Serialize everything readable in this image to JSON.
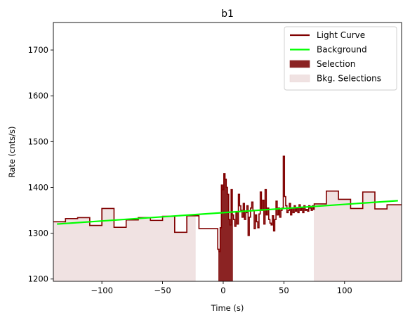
{
  "chart_data": {
    "type": "line",
    "title": "b1",
    "xlabel": "Time (s)",
    "ylabel": "Rate (cnts/s)",
    "xlim": [
      -140,
      147
    ],
    "ylim": [
      1195,
      1760
    ],
    "xticks": [
      -100,
      -50,
      0,
      50,
      100
    ],
    "yticks": [
      1200,
      1300,
      1400,
      1500,
      1600,
      1700
    ],
    "xtick_labels": [
      "−100",
      "−50",
      "0",
      "50",
      "100"
    ],
    "ytick_labels": [
      "1200",
      "1300",
      "1400",
      "1500",
      "1600",
      "1700"
    ],
    "grid": false,
    "legend_position": "top-right",
    "legend": [
      {
        "label": "Light Curve",
        "kind": "line",
        "color": "#800000"
      },
      {
        "label": "Background",
        "kind": "line",
        "color": "#00ff00"
      },
      {
        "label": "Selection",
        "kind": "patch",
        "color": "#8b2323"
      },
      {
        "label": "Bkg. Selections",
        "kind": "patch",
        "color": "#f0e2e2"
      }
    ],
    "series": [
      {
        "name": "Light Curve",
        "color": "#800000",
        "step": "post",
        "x": [
          -140,
          -130,
          -120,
          -110,
          -100,
          -90,
          -80,
          -70,
          -60,
          -50,
          -40,
          -30,
          -20,
          -4.5,
          -3.5,
          -2.5,
          -1.5,
          -0.5,
          0.5,
          1.5,
          2.5,
          3.5,
          4.5,
          5.5,
          6.5,
          7.5,
          8.5,
          9.5,
          10.5,
          11.5,
          12.5,
          13.5,
          14.5,
          15.5,
          16.5,
          17.5,
          18.5,
          19.5,
          20.5,
          21.5,
          22.5,
          23.5,
          24.5,
          25.5,
          26.5,
          27.5,
          28.5,
          29.5,
          30.5,
          31.5,
          32.5,
          33.5,
          34.5,
          35.5,
          36.5,
          37.5,
          38.5,
          39.5,
          40.5,
          41.5,
          42.5,
          43.5,
          44.5,
          45.5,
          46.5,
          47.5,
          48.5,
          49.5,
          50.5,
          51.5,
          52.5,
          53.5,
          54.5,
          55.5,
          56.5,
          57.5,
          58.5,
          59.5,
          60.5,
          61.5,
          62.5,
          63.5,
          64.5,
          65.5,
          66.5,
          67.5,
          68.5,
          69.5,
          70.5,
          71.5,
          72.5,
          73.5,
          74.5,
          75,
          85,
          95,
          105,
          115,
          125,
          135,
          147
        ],
        "y": [
          1325,
          1332,
          1334,
          1317,
          1354,
          1313,
          1329,
          1334,
          1328,
          1337,
          1302,
          1338,
          1310,
          1265,
          1260,
          1312,
          1405,
          1395,
          1430,
          1418,
          1400,
          1385,
          1330,
          1318,
          1395,
          1340,
          1330,
          1315,
          1345,
          1320,
          1385,
          1360,
          1350,
          1335,
          1365,
          1330,
          1345,
          1360,
          1295,
          1335,
          1355,
          1368,
          1350,
          1310,
          1340,
          1325,
          1312,
          1342,
          1390,
          1350,
          1372,
          1320,
          1395,
          1340,
          1355,
          1330,
          1322,
          1318,
          1338,
          1305,
          1330,
          1370,
          1340,
          1355,
          1335,
          1350,
          1355,
          1468,
          1380,
          1360,
          1345,
          1350,
          1365,
          1340,
          1355,
          1345,
          1360,
          1348,
          1355,
          1345,
          1362,
          1350,
          1355,
          1345,
          1360,
          1350,
          1352,
          1348,
          1360,
          1355,
          1350,
          1360,
          1352,
          1364,
          1392,
          1374,
          1354,
          1390,
          1353,
          1362,
          1362
        ]
      },
      {
        "name": "Background",
        "color": "#00ff00",
        "x": [
          -137,
          144
        ],
        "y": [
          1320,
          1371
        ]
      }
    ],
    "selection": {
      "x": [
        -4,
        8
      ],
      "color": "#8b2323"
    },
    "bkg_selections": [
      {
        "x": [
          -140,
          -23
        ],
        "color": "#f0e2e2"
      },
      {
        "x": [
          75,
          147
        ],
        "color": "#f0e2e2"
      }
    ]
  }
}
